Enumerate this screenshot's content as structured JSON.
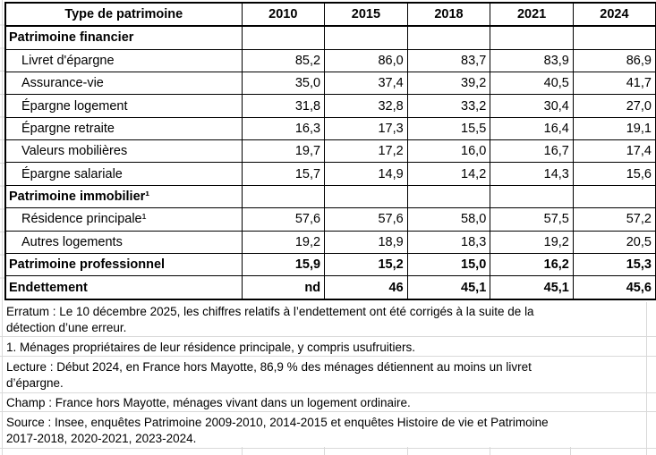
{
  "chart_data": {
    "type": "table",
    "columns": [
      "Type de patrimoine",
      "2010",
      "2015",
      "2018",
      "2021",
      "2024"
    ],
    "rows": [
      {
        "label": "Patrimoine financier",
        "style": "section",
        "values": [
          "",
          "",
          "",
          "",
          ""
        ]
      },
      {
        "label": "Livret d'épargne",
        "style": "data",
        "values": [
          "85,2",
          "86,0",
          "83,7",
          "83,9",
          "86,9"
        ]
      },
      {
        "label": "Assurance-vie",
        "style": "data",
        "values": [
          "35,0",
          "37,4",
          "39,2",
          "40,5",
          "41,7"
        ]
      },
      {
        "label": "Épargne logement",
        "style": "data",
        "values": [
          "31,8",
          "32,8",
          "33,2",
          "30,4",
          "27,0"
        ]
      },
      {
        "label": "Épargne retraite",
        "style": "data",
        "values": [
          "16,3",
          "17,3",
          "15,5",
          "16,4",
          "19,1"
        ]
      },
      {
        "label": "Valeurs mobilières",
        "style": "data",
        "values": [
          "19,7",
          "17,2",
          "16,0",
          "16,7",
          "17,4"
        ]
      },
      {
        "label": "Épargne salariale",
        "style": "data",
        "values": [
          "15,7",
          "14,9",
          "14,2",
          "14,3",
          "15,6"
        ]
      },
      {
        "label": "Patrimoine immobilier¹",
        "style": "section",
        "values": [
          "",
          "",
          "",
          "",
          ""
        ]
      },
      {
        "label": "Résidence principale¹",
        "style": "data",
        "values": [
          "57,6",
          "57,6",
          "58,0",
          "57,5",
          "57,2"
        ]
      },
      {
        "label": "Autres logements",
        "style": "data",
        "values": [
          "19,2",
          "18,9",
          "18,3",
          "19,2",
          "20,5"
        ]
      },
      {
        "label": "Patrimoine professionnel",
        "style": "total",
        "values": [
          "15,9",
          "15,2",
          "15,0",
          "16,2",
          "15,3"
        ]
      },
      {
        "label": "Endettement",
        "style": "total",
        "values": [
          "nd",
          "46",
          "45,1",
          "45,1",
          "45,6"
        ]
      }
    ],
    "notes": [
      {
        "lines": [
          "Erratum : Le 10 décembre 2025, les chiffres relatifs à l’endettement ont été corrigés à la suite de la",
          "détection d’une erreur."
        ]
      },
      {
        "lines": [
          "1. Ménages propriétaires de leur résidence principale, y compris usufruitiers."
        ]
      },
      {
        "lines": [
          "Lecture : Début 2024, en France hors Mayotte, 86,9 % des ménages détiennent au moins un livret",
          "d’épargne."
        ]
      },
      {
        "lines": [
          "Champ : France hors Mayotte, ménages vivant dans un logement ordinaire."
        ]
      },
      {
        "lines": [
          "Source : Insee, enquêtes Patrimoine 2009-2010, 2014-2015 et enquêtes Histoire de vie et Patrimoine",
          "2017-2018, 2020-2021, 2023-2024."
        ]
      }
    ],
    "layout": {
      "colors": {
        "table_border": "#000000",
        "gridline": "#d9d9d9",
        "text": "#000000",
        "background": "#ffffff"
      }
    }
  }
}
